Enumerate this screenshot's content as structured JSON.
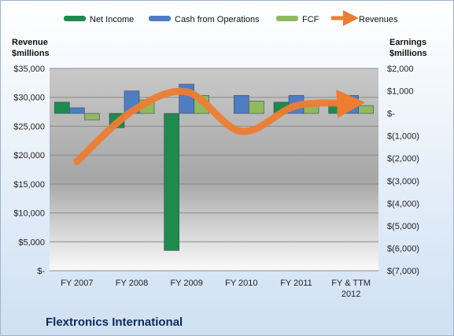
{
  "chart_data": {
    "type": "bar",
    "company": "Flextronics International",
    "categories": [
      "FY 2007",
      "FY 2008",
      "FY 2009",
      "FY 2010",
      "FY 2011",
      "FY & TTM|2012"
    ],
    "left_axis": {
      "title_line1": "Revenue",
      "title_line2": "$millions",
      "min": 0,
      "max": 35000,
      "step": 5000,
      "tick_labels": [
        "$-",
        "$5,000",
        "$10,000",
        "$15,000",
        "$20,000",
        "$25,000",
        "$30,000",
        "$35,000"
      ]
    },
    "right_axis": {
      "title_line1": "Earnings",
      "title_line2": "$millions",
      "min": -7000,
      "max": 2000,
      "step": 1000,
      "tick_labels": [
        "$(7,000)",
        "$(6,000)",
        "$(5,000)",
        "$(4,000)",
        "$(3,000)",
        "$(2,000)",
        "$(1,000)",
        "$-",
        "$1,000",
        "$2,000"
      ]
    },
    "series": [
      {
        "name": "Net Income",
        "type": "bar",
        "axis": "right",
        "color": "#1e8a4e",
        "values": [
          500,
          -640,
          -6100,
          0,
          500,
          500
        ]
      },
      {
        "name": "Cash from Operations",
        "type": "bar",
        "axis": "right",
        "color": "#4f7dc4",
        "values": [
          250,
          1000,
          1300,
          800,
          800,
          800
        ]
      },
      {
        "name": "FCF",
        "type": "bar",
        "axis": "right",
        "color": "#8fba5e",
        "values": [
          -290,
          600,
          800,
          550,
          350,
          350
        ]
      },
      {
        "name": "Revenues",
        "type": "line",
        "axis": "left",
        "color": "#ed7d31",
        "values": [
          18900,
          27550,
          30950,
          24100,
          28550,
          29000
        ]
      }
    ],
    "grid": true,
    "legend_position": "top"
  }
}
